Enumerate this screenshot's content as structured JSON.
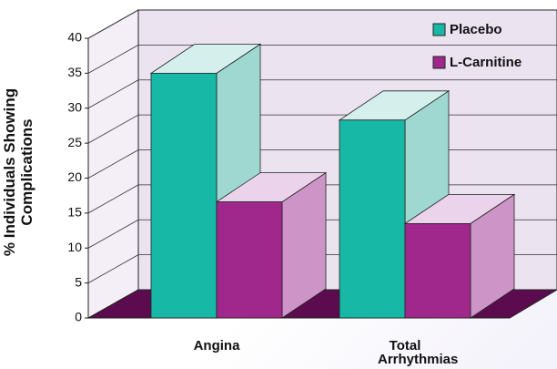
{
  "chart_data": {
    "type": "bar",
    "y_label": "% Individuals Showing Complications",
    "categories": [
      "Angina",
      "Total Arrhythmias"
    ],
    "series": [
      {
        "name": "Placebo",
        "color": "#17b8a6",
        "values": [
          35,
          28.3
        ]
      },
      {
        "name": "L-Carnitine",
        "color": "#a0288c",
        "values": [
          16.6,
          13.5
        ]
      }
    ],
    "ylim": [
      0,
      40
    ],
    "yticks": [
      0,
      5,
      10,
      15,
      20,
      25,
      30,
      35,
      40
    ],
    "grid": true,
    "legend": "top-right"
  }
}
